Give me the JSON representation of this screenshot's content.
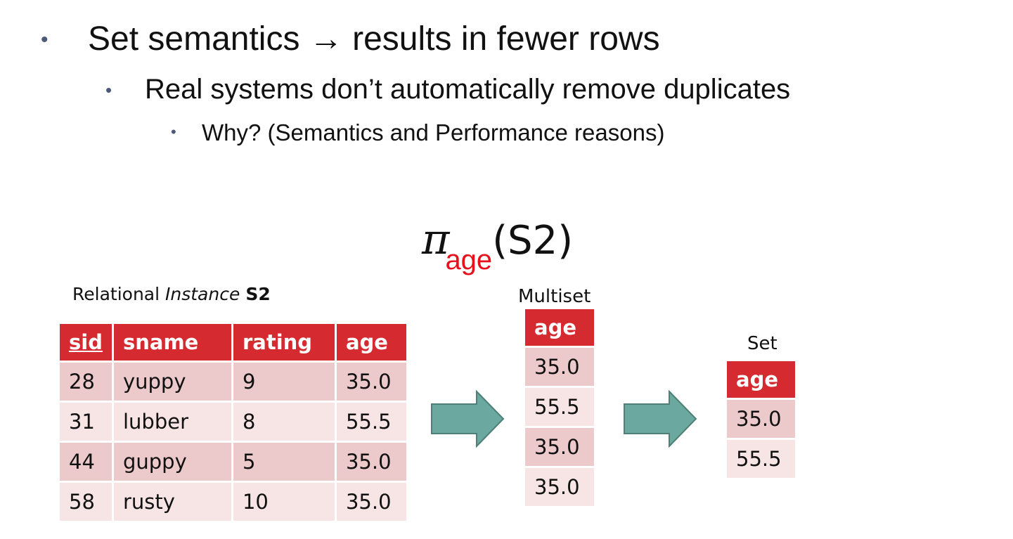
{
  "bullets": [
    {
      "level": 1,
      "text": "Set semantics → results in fewer rows"
    },
    {
      "level": 2,
      "text": "Real systems don’t automatically remove duplicates"
    },
    {
      "level": 3,
      "text": "Why? (Semantics and Performance reasons)"
    }
  ],
  "bullet_glyph": "•",
  "formula": {
    "operator": "π",
    "subscript": "age",
    "argument": "(S2)"
  },
  "colors": {
    "header": "#d42a30",
    "row_dark": "#ecc9ca",
    "row_light": "#f7e5e6",
    "arrow_fill": "#6ba8a0",
    "subscript": "#e8101a"
  },
  "relation": {
    "caption_prefix": "Relational",
    "caption_italic": "Instance",
    "caption_bold": "S2",
    "headers": [
      "sid",
      "sname",
      "rating",
      "age"
    ],
    "rows": [
      [
        "28",
        "yuppy",
        "9",
        "35.0"
      ],
      [
        "31",
        "lubber",
        "8",
        "55.5"
      ],
      [
        "44",
        "guppy",
        "5",
        "35.0"
      ],
      [
        "58",
        "rusty",
        "10",
        "35.0"
      ]
    ]
  },
  "multiset": {
    "caption": "Multiset",
    "header": "age",
    "values": [
      "35.0",
      "55.5",
      "35.0",
      "35.0"
    ]
  },
  "set": {
    "caption": "Set",
    "header": "age",
    "values": [
      "35.0",
      "55.5"
    ]
  }
}
